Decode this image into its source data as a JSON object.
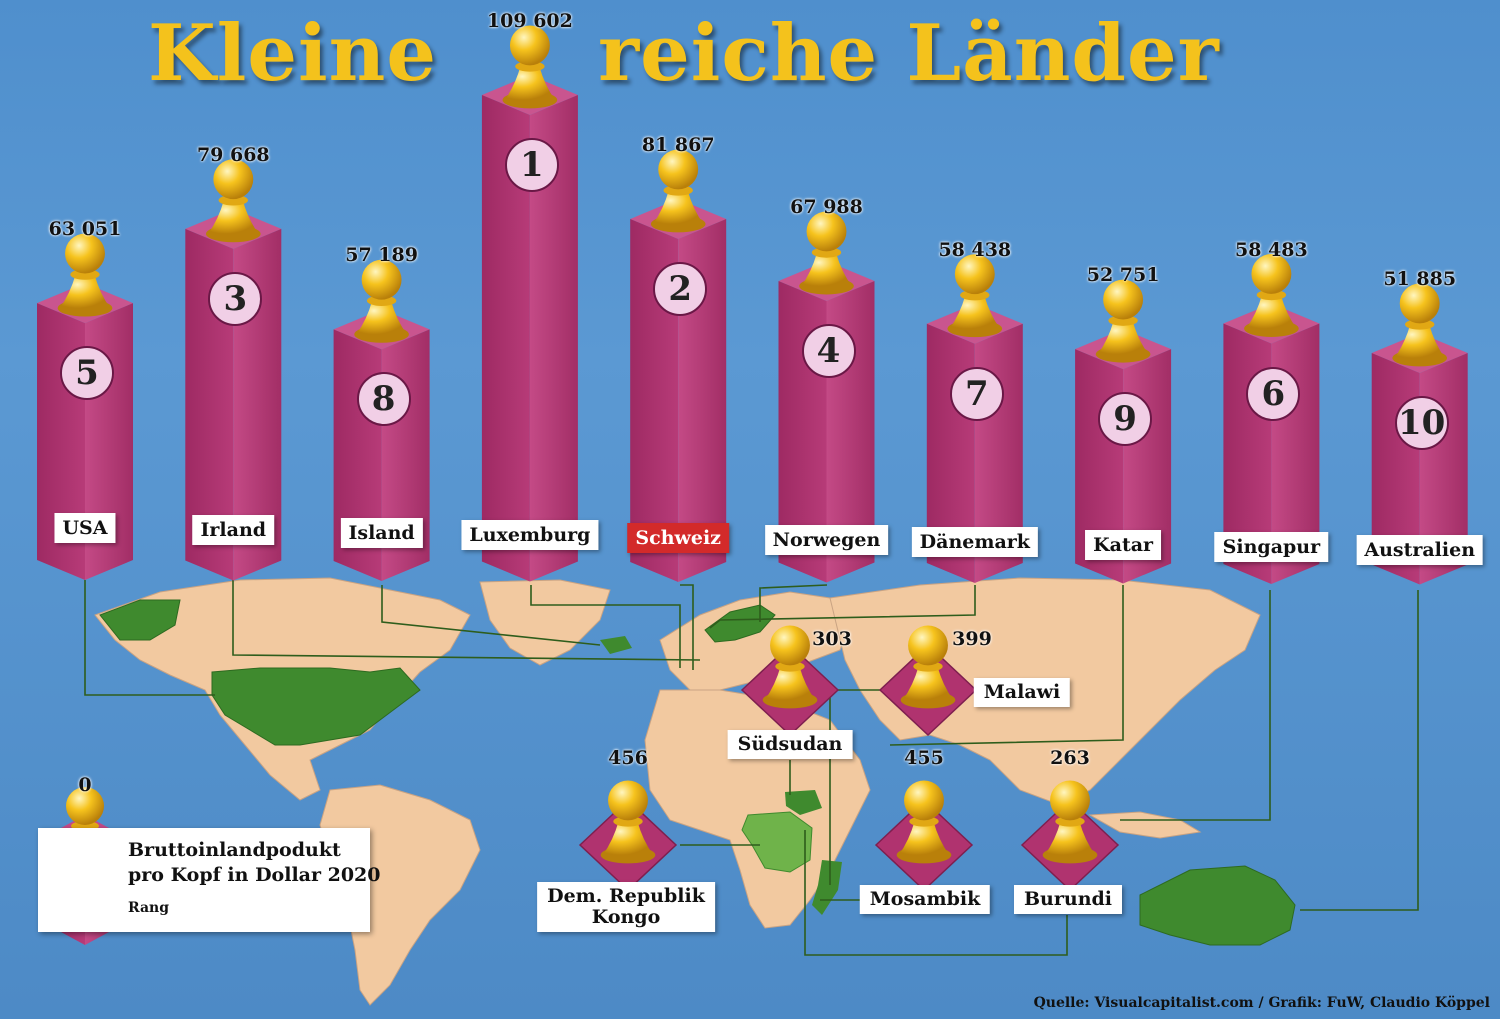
{
  "title_left": "Kleine",
  "title_right": "reiche Länder",
  "colors": {
    "pillar": "#b0336f",
    "pawn": "#f4c21c",
    "land": "#f2c9a0",
    "highlight_land": "#3f8a2e",
    "rank_circle": "#f1cfe6"
  },
  "chart_data": [
    {
      "type": "bar",
      "categories": [
        "USA",
        "Irland",
        "Island",
        "Luxemburg",
        "Schweiz",
        "Norwegen",
        "Dänemark",
        "Katar",
        "Singapur",
        "Australien"
      ],
      "values": [
        63051,
        79668,
        57189,
        109602,
        81867,
        67988,
        58438,
        52751,
        58483,
        51885
      ],
      "value_labels": [
        "63 051",
        "79 668",
        "57 189",
        "109 602",
        "81 867",
        "67 988",
        "58 438",
        "52 751",
        "58 483",
        "51 885"
      ],
      "ranks": [
        "5",
        "3",
        "8",
        "1",
        "2",
        "4",
        "7",
        "9",
        "6",
        "10"
      ],
      "highlight": "Schweiz"
    },
    {
      "type": "bar",
      "categories": [
        "Südsudan",
        "Malawi",
        "Dem. Republik Kongo",
        "Mosambik",
        "Burundi"
      ],
      "values": [
        303,
        399,
        456,
        455,
        263
      ],
      "value_labels": [
        "303",
        "399",
        "456",
        "455",
        "263"
      ]
    }
  ],
  "legend": {
    "value": "0",
    "line1": "Bruttoinlandpodukt",
    "line2": "pro Kopf in Dollar 2020",
    "rank_label": "Rang"
  },
  "source": "Quelle: Visualcapitalist.com / Grafik: FuW, Claudio Köppel"
}
